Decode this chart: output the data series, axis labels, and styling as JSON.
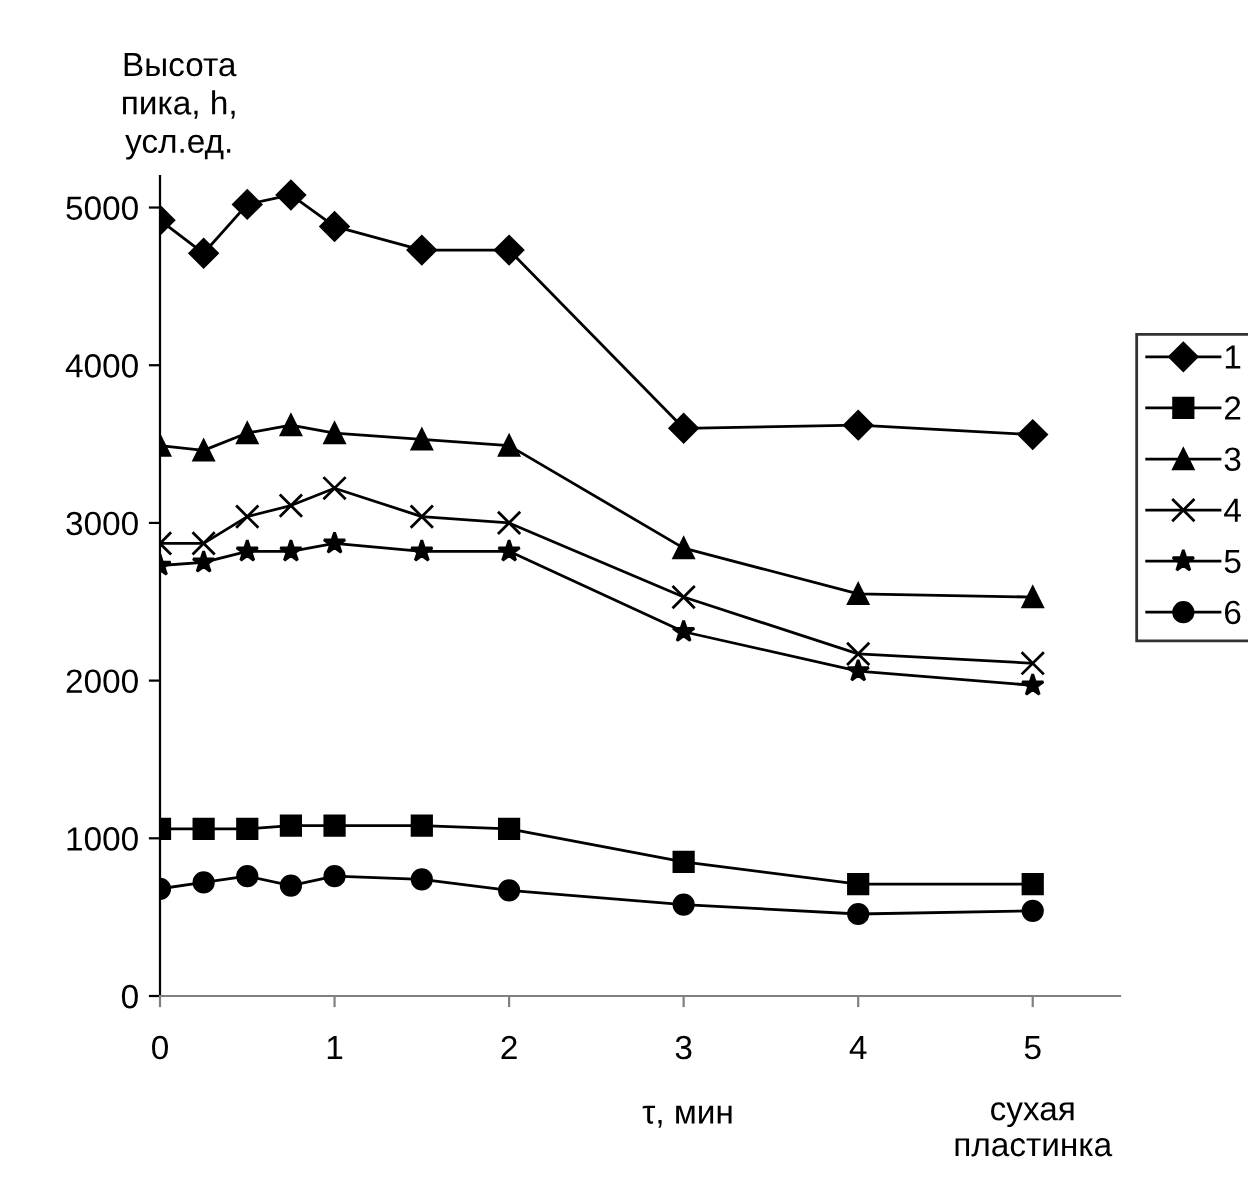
{
  "chart_data": {
    "type": "line",
    "ylabel": "Высота\nпика, h,\nусл.ед.",
    "xlabel": "τ, мин",
    "annotations": [
      "сухая\nпластинка"
    ],
    "x": [
      0,
      0.25,
      0.5,
      0.75,
      1,
      1.5,
      2,
      3,
      4,
      5
    ],
    "xlim": [
      0,
      5.5
    ],
    "xticks": [
      0,
      1,
      2,
      3,
      4,
      5
    ],
    "ylim": [
      0,
      5200
    ],
    "yticks": [
      0,
      1000,
      2000,
      3000,
      4000,
      5000
    ],
    "grid": false,
    "legend": "right",
    "series": [
      {
        "name": "1",
        "color": "#000000",
        "marker": "diamond",
        "values": [
          4920,
          4710,
          5020,
          5080,
          4880,
          4730,
          4730,
          3600,
          3620,
          3560
        ]
      },
      {
        "name": "2",
        "color": "#000000",
        "marker": "square",
        "values": [
          1060,
          1060,
          1060,
          1080,
          1080,
          1080,
          1060,
          850,
          710,
          710
        ]
      },
      {
        "name": "3",
        "color": "#000000",
        "marker": "triangle",
        "values": [
          3490,
          3460,
          3570,
          3620,
          3570,
          3530,
          3490,
          2840,
          2550,
          2530
        ]
      },
      {
        "name": "4",
        "color": "#000000",
        "marker": "cross",
        "values": [
          2870,
          2870,
          3040,
          3110,
          3220,
          3040,
          3000,
          2530,
          2170,
          2110
        ]
      },
      {
        "name": "5",
        "color": "#000000",
        "marker": "star",
        "values": [
          2730,
          2750,
          2820,
          2820,
          2870,
          2820,
          2820,
          2310,
          2060,
          1970
        ]
      },
      {
        "name": "6",
        "color": "#000000",
        "marker": "circle",
        "values": [
          680,
          720,
          760,
          700,
          760,
          740,
          670,
          580,
          520,
          540
        ]
      }
    ]
  }
}
